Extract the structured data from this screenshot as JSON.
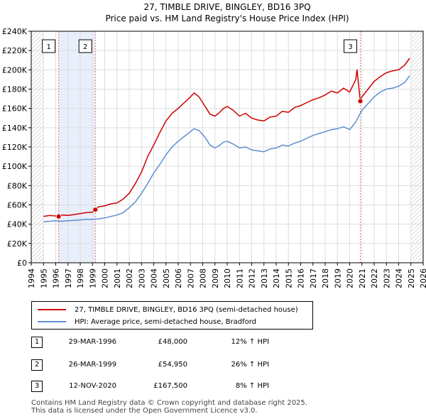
{
  "chart_data": {
    "type": "line",
    "title": "27, TIMBLE DRIVE, BINGLEY, BD16 3PQ",
    "subtitle": "Price paid vs. HM Land Registry's House Price Index (HPI)",
    "xlabel": "",
    "ylabel": "",
    "xlim": [
      1994,
      2026
    ],
    "ylim": [
      0,
      240000
    ],
    "x_ticks": [
      1994,
      1995,
      1996,
      1997,
      1998,
      1999,
      2000,
      2001,
      2002,
      2003,
      2004,
      2005,
      2006,
      2007,
      2008,
      2009,
      2010,
      2011,
      2012,
      2013,
      2014,
      2015,
      2016,
      2017,
      2018,
      2019,
      2020,
      2021,
      2022,
      2023,
      2024,
      2025,
      2026
    ],
    "y_ticks": [
      0,
      20000,
      40000,
      60000,
      80000,
      100000,
      120000,
      140000,
      160000,
      180000,
      200000,
      220000,
      240000
    ],
    "y_tick_labels": [
      "£0",
      "£20K",
      "£40K",
      "£60K",
      "£80K",
      "£100K",
      "£120K",
      "£140K",
      "£160K",
      "£180K",
      "£200K",
      "£220K",
      "£240K"
    ],
    "grid": true,
    "series": [
      {
        "name": "27, TIMBLE DRIVE, BINGLEY, BD16 3PQ (semi-detached house)",
        "color": "#cc0000",
        "x": [
          1995.0,
          1995.5,
          1996.0,
          1996.24,
          1996.5,
          1997.0,
          1997.5,
          1998.0,
          1998.5,
          1999.0,
          1999.23,
          1999.5,
          2000.0,
          2000.5,
          2001.0,
          2001.5,
          2002.0,
          2002.5,
          2003.0,
          2003.5,
          2004.0,
          2004.5,
          2005.0,
          2005.5,
          2006.0,
          2006.5,
          2007.0,
          2007.3,
          2007.7,
          2008.0,
          2008.3,
          2008.6,
          2009.0,
          2009.3,
          2009.7,
          2010.0,
          2010.5,
          2011.0,
          2011.5,
          2012.0,
          2012.5,
          2013.0,
          2013.5,
          2014.0,
          2014.5,
          2015.0,
          2015.5,
          2016.0,
          2016.5,
          2017.0,
          2017.5,
          2018.0,
          2018.5,
          2019.0,
          2019.5,
          2020.0,
          2020.5,
          2020.6,
          2020.87,
          2021.0,
          2021.5,
          2022.0,
          2022.5,
          2023.0,
          2023.5,
          2024.0,
          2024.5,
          2024.9
        ],
        "values": [
          48000,
          49000,
          48500,
          48000,
          49500,
          49000,
          50000,
          51000,
          52000,
          52500,
          54950,
          58000,
          59000,
          61000,
          62000,
          66000,
          72000,
          82000,
          94000,
          110000,
          122000,
          135000,
          147000,
          155000,
          160000,
          166000,
          172000,
          176000,
          172000,
          166000,
          160000,
          154000,
          152000,
          155000,
          160000,
          162000,
          158000,
          152000,
          155000,
          150000,
          148000,
          147000,
          151000,
          152000,
          157000,
          156000,
          161000,
          163000,
          166000,
          169000,
          171000,
          174000,
          178000,
          176000,
          181000,
          177000,
          190000,
          200000,
          167500,
          172000,
          180000,
          188000,
          193000,
          197000,
          199000,
          200000,
          205000,
          212000
        ]
      },
      {
        "name": "HPI: Average price, semi-detached house, Bradford",
        "color": "#5b8fd0",
        "x": [
          1995.0,
          1995.5,
          1996.0,
          1996.5,
          1997.0,
          1997.5,
          1998.0,
          1998.5,
          1999.0,
          1999.5,
          2000.0,
          2000.5,
          2001.0,
          2001.5,
          2002.0,
          2002.5,
          2003.0,
          2003.5,
          2004.0,
          2004.5,
          2005.0,
          2005.5,
          2006.0,
          2006.5,
          2007.0,
          2007.3,
          2007.7,
          2008.0,
          2008.3,
          2008.6,
          2009.0,
          2009.3,
          2009.7,
          2010.0,
          2010.5,
          2011.0,
          2011.5,
          2012.0,
          2012.5,
          2013.0,
          2013.5,
          2014.0,
          2014.5,
          2015.0,
          2015.5,
          2016.0,
          2016.5,
          2017.0,
          2017.5,
          2018.0,
          2018.5,
          2019.0,
          2019.5,
          2020.0,
          2020.5,
          2020.87,
          2021.0,
          2021.5,
          2022.0,
          2022.5,
          2023.0,
          2023.5,
          2024.0,
          2024.5,
          2024.9
        ],
        "values": [
          42500,
          43000,
          43500,
          43000,
          43500,
          44000,
          44500,
          45000,
          45000,
          45500,
          46500,
          48000,
          49500,
          52000,
          57000,
          63000,
          72000,
          82000,
          93000,
          102000,
          112000,
          120000,
          126000,
          131000,
          136000,
          139000,
          137000,
          133000,
          128000,
          122000,
          119000,
          121000,
          125000,
          126000,
          123000,
          119000,
          120000,
          117000,
          116000,
          115000,
          118000,
          119000,
          122000,
          121000,
          124000,
          126000,
          129000,
          132000,
          134000,
          136000,
          138000,
          139000,
          141000,
          138000,
          146000,
          155000,
          158000,
          165000,
          172000,
          177000,
          180000,
          181000,
          183000,
          187000,
          194000
        ]
      }
    ],
    "sale_markers": [
      {
        "label": "1",
        "x": 1996.24,
        "value": 48000
      },
      {
        "label": "2",
        "x": 1999.23,
        "value": 54950
      },
      {
        "label": "3",
        "x": 2020.87,
        "value": 167500
      }
    ],
    "hatched_regions": [
      [
        1994,
        1995
      ],
      [
        2025,
        2026
      ]
    ],
    "shaded_regions": [
      [
        1996.24,
        1999.23
      ]
    ]
  },
  "legend": {
    "items": [
      {
        "label": "27, TIMBLE DRIVE, BINGLEY, BD16 3PQ (semi-detached house)",
        "color": "#cc0000"
      },
      {
        "label": "HPI: Average price, semi-detached house, Bradford",
        "color": "#5b8fd0"
      }
    ]
  },
  "sales": [
    {
      "num": "1",
      "date": "29-MAR-1996",
      "price": "£48,000",
      "hpi": "12% ↑ HPI"
    },
    {
      "num": "2",
      "date": "26-MAR-1999",
      "price": "£54,950",
      "hpi": "26% ↑ HPI"
    },
    {
      "num": "3",
      "date": "12-NOV-2020",
      "price": "£167,500",
      "hpi": "8% ↑ HPI"
    }
  ],
  "footer": {
    "line1": "Contains HM Land Registry data © Crown copyright and database right 2025.",
    "line2": "This data is licensed under the Open Government Licence v3.0."
  }
}
